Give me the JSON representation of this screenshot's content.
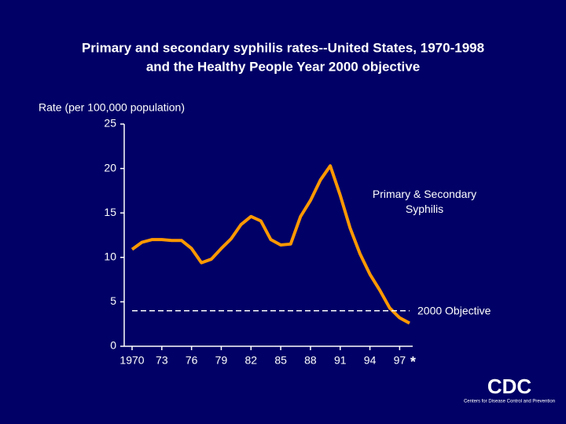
{
  "chart_data": {
    "type": "line",
    "title": "Primary and secondary syphilis rates--United States, 1970-1998",
    "subtitle": "and the Healthy People Year 2000 objective",
    "y_label": "Rate (per 100,000 population)",
    "x": [
      1970,
      1971,
      1972,
      1973,
      1974,
      1975,
      1976,
      1977,
      1978,
      1979,
      1980,
      1981,
      1982,
      1983,
      1984,
      1985,
      1986,
      1987,
      1988,
      1989,
      1990,
      1991,
      1992,
      1993,
      1994,
      1995,
      1996,
      1997,
      1998
    ],
    "series": [
      {
        "name": "Primary & Secondary Syphilis",
        "color": "#ff9900",
        "values": [
          10.9,
          11.7,
          12.0,
          12.0,
          11.9,
          11.9,
          11.0,
          9.4,
          9.8,
          11.0,
          12.1,
          13.7,
          14.6,
          14.1,
          12.0,
          11.4,
          11.5,
          14.6,
          16.4,
          18.7,
          20.3,
          17.0,
          13.3,
          10.4,
          8.1,
          6.3,
          4.3,
          3.2,
          2.6
        ]
      },
      {
        "name": "2000 Objective",
        "color": "#ffffff",
        "dashed": true,
        "x": [
          1970,
          1998
        ],
        "values": [
          4,
          4
        ]
      }
    ],
    "xlim": [
      1970,
      1998
    ],
    "ylim": [
      0,
      25
    ],
    "yticks": [
      0,
      5,
      10,
      15,
      20,
      25
    ],
    "xticks": [
      1970,
      {
        "value": 1973,
        "label": "73"
      },
      {
        "value": 1976,
        "label": "76"
      },
      {
        "value": 1979,
        "label": "79"
      },
      {
        "value": 1982,
        "label": "82"
      },
      {
        "value": 1985,
        "label": "85"
      },
      {
        "value": 1988,
        "label": "88"
      },
      {
        "value": 1991,
        "label": "91"
      },
      {
        "value": 1994,
        "label": "94"
      },
      {
        "value": 1997,
        "label": "97"
      }
    ],
    "footnote_marker": "*",
    "logo": "CDC",
    "logo_caption": "Centers for Disease Control and Prevention"
  }
}
